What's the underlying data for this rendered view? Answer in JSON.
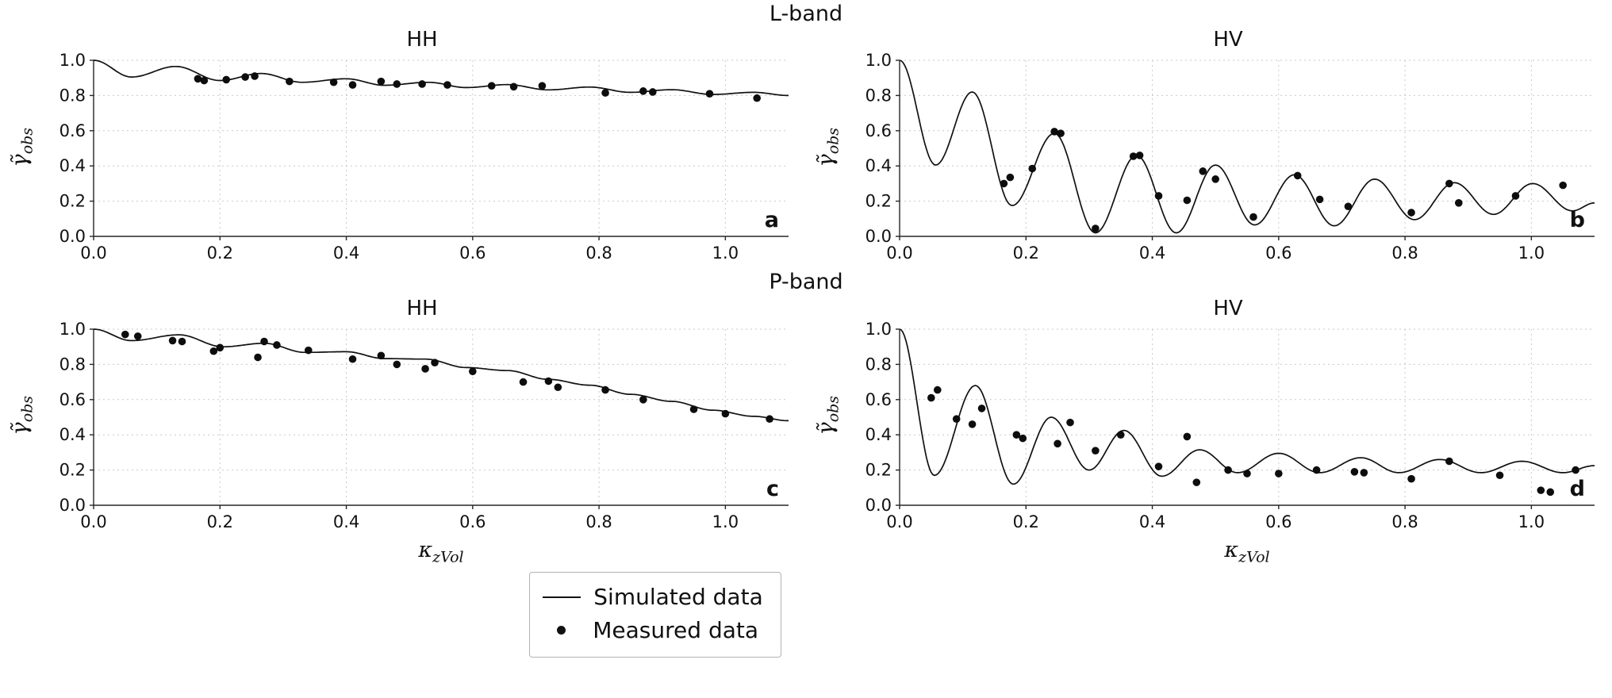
{
  "figure": {
    "band_titles": [
      "L-band",
      "P-band"
    ]
  },
  "axes": {
    "ylabel_main": "γ̃",
    "ylabel_sub": "obs",
    "xlabel_main": "κ",
    "xlabel_sub": "zVol"
  },
  "legend": {
    "items": [
      {
        "label": "Simulated data",
        "marker": "line"
      },
      {
        "label": "Measured data",
        "marker": "dot"
      }
    ]
  },
  "colors": {
    "line": "#111111",
    "marker": "#0d0d0d",
    "grid": "#c9c9c9",
    "spine": "#262626",
    "text": "#111111",
    "background": "#ffffff"
  },
  "chart_data": [
    {
      "panel": "a",
      "band": "L-band",
      "title": "HH",
      "type": "line",
      "xlim": [
        0,
        1.1
      ],
      "ylim": [
        0,
        1
      ],
      "xticks": [
        0.0,
        0.2,
        0.4,
        0.6,
        0.8,
        1.0
      ],
      "yticks": [
        0.0,
        0.2,
        0.4,
        0.6,
        0.8,
        1.0
      ],
      "series": [
        {
          "name": "Simulated data",
          "type": "line",
          "keypoints": [
            [
              0,
              1.0
            ],
            [
              0.06,
              0.905
            ],
            [
              0.13,
              0.965
            ],
            [
              0.2,
              0.885
            ],
            [
              0.265,
              0.925
            ],
            [
              0.33,
              0.875
            ],
            [
              0.4,
              0.895
            ],
            [
              0.46,
              0.858
            ],
            [
              0.53,
              0.875
            ],
            [
              0.59,
              0.845
            ],
            [
              0.655,
              0.862
            ],
            [
              0.72,
              0.832
            ],
            [
              0.785,
              0.848
            ],
            [
              0.85,
              0.818
            ],
            [
              0.915,
              0.833
            ],
            [
              0.98,
              0.806
            ],
            [
              1.045,
              0.818
            ],
            [
              1.1,
              0.8
            ]
          ]
        },
        {
          "name": "Measured data",
          "type": "scatter",
          "points": [
            [
              0.165,
              0.895
            ],
            [
              0.175,
              0.885
            ],
            [
              0.21,
              0.89
            ],
            [
              0.24,
              0.905
            ],
            [
              0.255,
              0.91
            ],
            [
              0.31,
              0.88
            ],
            [
              0.38,
              0.875
            ],
            [
              0.41,
              0.86
            ],
            [
              0.455,
              0.88
            ],
            [
              0.48,
              0.865
            ],
            [
              0.52,
              0.865
            ],
            [
              0.56,
              0.86
            ],
            [
              0.63,
              0.855
            ],
            [
              0.665,
              0.85
            ],
            [
              0.71,
              0.855
            ],
            [
              0.81,
              0.815
            ],
            [
              0.87,
              0.825
            ],
            [
              0.885,
              0.82
            ],
            [
              0.975,
              0.81
            ],
            [
              1.05,
              0.785
            ]
          ]
        }
      ]
    },
    {
      "panel": "b",
      "band": "L-band",
      "title": "HV",
      "type": "line",
      "xlim": [
        0,
        1.1
      ],
      "ylim": [
        0,
        1
      ],
      "xticks": [
        0.0,
        0.2,
        0.4,
        0.6,
        0.8,
        1.0
      ],
      "yticks": [
        0.0,
        0.2,
        0.4,
        0.6,
        0.8,
        1.0
      ],
      "series": [
        {
          "name": "Simulated data",
          "type": "line",
          "keypoints": [
            [
              0,
              1.0
            ],
            [
              0.057,
              0.405
            ],
            [
              0.115,
              0.82
            ],
            [
              0.178,
              0.175
            ],
            [
              0.245,
              0.585
            ],
            [
              0.31,
              0.02
            ],
            [
              0.375,
              0.46
            ],
            [
              0.438,
              0.02
            ],
            [
              0.5,
              0.405
            ],
            [
              0.562,
              0.065
            ],
            [
              0.625,
              0.35
            ],
            [
              0.688,
              0.06
            ],
            [
              0.752,
              0.325
            ],
            [
              0.815,
              0.095
            ],
            [
              0.878,
              0.305
            ],
            [
              0.94,
              0.125
            ],
            [
              1.002,
              0.3
            ],
            [
              1.065,
              0.145
            ],
            [
              1.1,
              0.19
            ]
          ]
        },
        {
          "name": "Measured data",
          "type": "scatter",
          "points": [
            [
              0.165,
              0.3
            ],
            [
              0.175,
              0.335
            ],
            [
              0.21,
              0.385
            ],
            [
              0.245,
              0.595
            ],
            [
              0.255,
              0.585
            ],
            [
              0.31,
              0.045
            ],
            [
              0.37,
              0.455
            ],
            [
              0.38,
              0.46
            ],
            [
              0.41,
              0.23
            ],
            [
              0.455,
              0.205
            ],
            [
              0.48,
              0.37
            ],
            [
              0.5,
              0.325
            ],
            [
              0.56,
              0.11
            ],
            [
              0.63,
              0.345
            ],
            [
              0.665,
              0.21
            ],
            [
              0.71,
              0.17
            ],
            [
              0.81,
              0.135
            ],
            [
              0.87,
              0.3
            ],
            [
              0.885,
              0.19
            ],
            [
              0.975,
              0.23
            ],
            [
              1.05,
              0.29
            ]
          ]
        }
      ]
    },
    {
      "panel": "c",
      "band": "P-band",
      "title": "HH",
      "type": "line",
      "xlim": [
        0,
        1.1
      ],
      "ylim": [
        0,
        1
      ],
      "xticks": [
        0.0,
        0.2,
        0.4,
        0.6,
        0.8,
        1.0
      ],
      "yticks": [
        0.0,
        0.2,
        0.4,
        0.6,
        0.8,
        1.0
      ],
      "series": [
        {
          "name": "Simulated data",
          "type": "line",
          "keypoints": [
            [
              0,
              1.0
            ],
            [
              0.06,
              0.935
            ],
            [
              0.135,
              0.968
            ],
            [
              0.205,
              0.9
            ],
            [
              0.27,
              0.92
            ],
            [
              0.335,
              0.868
            ],
            [
              0.4,
              0.872
            ],
            [
              0.46,
              0.833
            ],
            [
              0.525,
              0.83
            ],
            [
              0.59,
              0.782
            ],
            [
              0.655,
              0.765
            ],
            [
              0.72,
              0.715
            ],
            [
              0.785,
              0.682
            ],
            [
              0.85,
              0.63
            ],
            [
              0.915,
              0.59
            ],
            [
              0.98,
              0.54
            ],
            [
              1.045,
              0.505
            ],
            [
              1.1,
              0.48
            ]
          ]
        },
        {
          "name": "Measured data",
          "type": "scatter",
          "points": [
            [
              0.05,
              0.97
            ],
            [
              0.07,
              0.96
            ],
            [
              0.125,
              0.935
            ],
            [
              0.14,
              0.93
            ],
            [
              0.19,
              0.875
            ],
            [
              0.2,
              0.895
            ],
            [
              0.26,
              0.84
            ],
            [
              0.27,
              0.93
            ],
            [
              0.29,
              0.91
            ],
            [
              0.34,
              0.88
            ],
            [
              0.41,
              0.83
            ],
            [
              0.455,
              0.85
            ],
            [
              0.48,
              0.8
            ],
            [
              0.525,
              0.775
            ],
            [
              0.54,
              0.81
            ],
            [
              0.6,
              0.76
            ],
            [
              0.68,
              0.7
            ],
            [
              0.72,
              0.705
            ],
            [
              0.735,
              0.67
            ],
            [
              0.81,
              0.655
            ],
            [
              0.87,
              0.6
            ],
            [
              0.95,
              0.545
            ],
            [
              1.0,
              0.52
            ],
            [
              1.07,
              0.49
            ]
          ]
        }
      ]
    },
    {
      "panel": "d",
      "band": "P-band",
      "title": "HV",
      "type": "line",
      "xlim": [
        0,
        1.1
      ],
      "ylim": [
        0,
        1
      ],
      "xticks": [
        0.0,
        0.2,
        0.4,
        0.6,
        0.8,
        1.0
      ],
      "yticks": [
        0.0,
        0.2,
        0.4,
        0.6,
        0.8,
        1.0
      ],
      "series": [
        {
          "name": "Simulated data",
          "type": "line",
          "keypoints": [
            [
              0,
              1.0
            ],
            [
              0.055,
              0.17
            ],
            [
              0.12,
              0.68
            ],
            [
              0.18,
              0.12
            ],
            [
              0.24,
              0.5
            ],
            [
              0.3,
              0.2
            ],
            [
              0.355,
              0.425
            ],
            [
              0.415,
              0.165
            ],
            [
              0.475,
              0.315
            ],
            [
              0.535,
              0.185
            ],
            [
              0.6,
              0.295
            ],
            [
              0.665,
              0.185
            ],
            [
              0.73,
              0.27
            ],
            [
              0.79,
              0.185
            ],
            [
              0.855,
              0.26
            ],
            [
              0.92,
              0.185
            ],
            [
              0.985,
              0.25
            ],
            [
              1.05,
              0.185
            ],
            [
              1.1,
              0.225
            ]
          ]
        },
        {
          "name": "Measured data",
          "type": "scatter",
          "points": [
            [
              0.05,
              0.61
            ],
            [
              0.06,
              0.655
            ],
            [
              0.09,
              0.49
            ],
            [
              0.115,
              0.46
            ],
            [
              0.13,
              0.55
            ],
            [
              0.185,
              0.4
            ],
            [
              0.195,
              0.38
            ],
            [
              0.25,
              0.35
            ],
            [
              0.27,
              0.47
            ],
            [
              0.31,
              0.31
            ],
            [
              0.35,
              0.4
            ],
            [
              0.41,
              0.22
            ],
            [
              0.455,
              0.39
            ],
            [
              0.47,
              0.13
            ],
            [
              0.52,
              0.2
            ],
            [
              0.55,
              0.18
            ],
            [
              0.6,
              0.18
            ],
            [
              0.66,
              0.2
            ],
            [
              0.72,
              0.19
            ],
            [
              0.735,
              0.185
            ],
            [
              0.81,
              0.15
            ],
            [
              0.87,
              0.25
            ],
            [
              0.95,
              0.17
            ],
            [
              1.015,
              0.085
            ],
            [
              1.03,
              0.075
            ],
            [
              1.07,
              0.2
            ]
          ]
        }
      ]
    }
  ]
}
